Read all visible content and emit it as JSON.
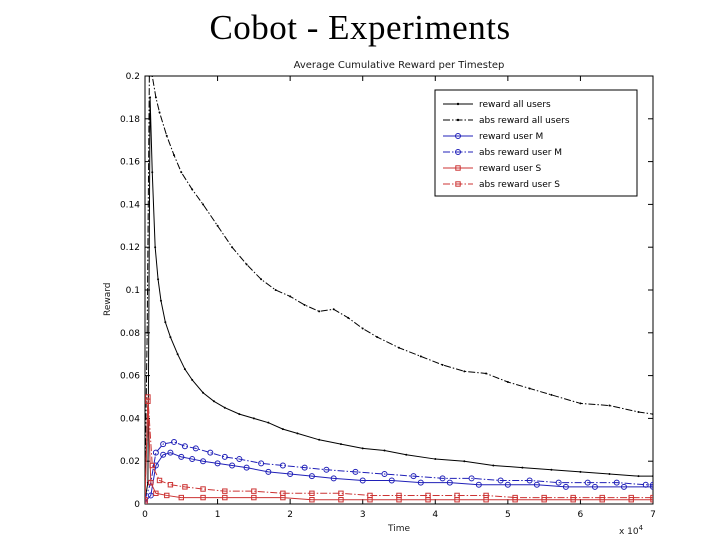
{
  "slide": {
    "title": "Cobot - Experiments"
  },
  "chart_data": {
    "type": "line",
    "title": "Average Cumulative Reward per Timestep",
    "xlabel": "Time",
    "ylabel": "Reward",
    "x_scale_base": "x 10",
    "x_scale_exp": "4",
    "xlim": [
      0,
      7
    ],
    "ylim": [
      0,
      0.2
    ],
    "xticks": [
      0,
      1,
      2,
      3,
      4,
      5,
      6,
      7
    ],
    "yticks": [
      0,
      0.02,
      0.04,
      0.06,
      0.08,
      0.1,
      0.12,
      0.14,
      0.16,
      0.18,
      0.2
    ],
    "ytick_labels": [
      "0",
      "0.02",
      "0.04",
      "0.06",
      "0.08",
      "0.1",
      "0.12",
      "0.14",
      "0.16",
      "0.18",
      "0.2"
    ],
    "legend_position": "top-right",
    "grid": false,
    "series": [
      {
        "name": "reward all users",
        "color": "#000000",
        "style": "solid",
        "marker": "dot",
        "x": [
          0,
          0.04,
          0.07,
          0.1,
          0.14,
          0.18,
          0.22,
          0.28,
          0.35,
          0.45,
          0.55,
          0.65,
          0.8,
          0.95,
          1.1,
          1.3,
          1.5,
          1.7,
          1.9,
          2.1,
          2.4,
          2.7,
          3.0,
          3.3,
          3.6,
          4.0,
          4.4,
          4.8,
          5.2,
          5.6,
          6.0,
          6.4,
          6.8,
          7.0
        ],
        "y": [
          0.002,
          0.01,
          0.19,
          0.155,
          0.12,
          0.105,
          0.095,
          0.085,
          0.078,
          0.07,
          0.063,
          0.058,
          0.052,
          0.048,
          0.045,
          0.042,
          0.04,
          0.038,
          0.035,
          0.033,
          0.03,
          0.028,
          0.026,
          0.025,
          0.023,
          0.021,
          0.02,
          0.018,
          0.017,
          0.016,
          0.015,
          0.014,
          0.013,
          0.013
        ]
      },
      {
        "name": "abs reward all users",
        "color": "#000000",
        "style": "dashdot",
        "marker": "dot",
        "x": [
          0,
          0.03,
          0.06,
          0.1,
          0.15,
          0.2,
          0.3,
          0.4,
          0.5,
          0.65,
          0.8,
          1.0,
          1.2,
          1.4,
          1.6,
          1.8,
          2.0,
          2.2,
          2.4,
          2.6,
          2.8,
          3.0,
          3.2,
          3.5,
          3.8,
          4.1,
          4.4,
          4.7,
          5.0,
          5.3,
          5.6,
          6.0,
          6.4,
          6.8,
          7.0
        ],
        "y": [
          0.01,
          0.08,
          0.2,
          0.2,
          0.19,
          0.183,
          0.172,
          0.163,
          0.155,
          0.147,
          0.14,
          0.13,
          0.12,
          0.112,
          0.105,
          0.1,
          0.097,
          0.093,
          0.09,
          0.091,
          0.087,
          0.082,
          0.078,
          0.073,
          0.069,
          0.065,
          0.062,
          0.061,
          0.057,
          0.054,
          0.051,
          0.047,
          0.046,
          0.043,
          0.042
        ]
      },
      {
        "name": "reward user M",
        "color": "#2020b8",
        "style": "solid",
        "marker": "circle",
        "x": [
          0,
          0.08,
          0.15,
          0.25,
          0.35,
          0.5,
          0.65,
          0.8,
          1.0,
          1.2,
          1.4,
          1.7,
          2.0,
          2.3,
          2.6,
          3.0,
          3.4,
          3.8,
          4.2,
          4.6,
          5.0,
          5.4,
          5.8,
          6.2,
          6.6,
          7.0
        ],
        "y": [
          0.001,
          0.004,
          0.018,
          0.023,
          0.024,
          0.022,
          0.021,
          0.02,
          0.019,
          0.018,
          0.017,
          0.015,
          0.014,
          0.013,
          0.012,
          0.011,
          0.011,
          0.01,
          0.01,
          0.009,
          0.009,
          0.009,
          0.008,
          0.008,
          0.008,
          0.008
        ]
      },
      {
        "name": "abs reward user M",
        "color": "#2020b8",
        "style": "dashdot",
        "marker": "circle",
        "x": [
          0,
          0.08,
          0.15,
          0.25,
          0.4,
          0.55,
          0.7,
          0.9,
          1.1,
          1.3,
          1.6,
          1.9,
          2.2,
          2.5,
          2.9,
          3.3,
          3.7,
          4.1,
          4.5,
          4.9,
          5.3,
          5.7,
          6.1,
          6.5,
          6.9,
          7.0
        ],
        "y": [
          0.002,
          0.01,
          0.024,
          0.028,
          0.029,
          0.027,
          0.026,
          0.024,
          0.022,
          0.021,
          0.019,
          0.018,
          0.017,
          0.016,
          0.015,
          0.014,
          0.013,
          0.012,
          0.012,
          0.011,
          0.011,
          0.01,
          0.01,
          0.01,
          0.009,
          0.009
        ]
      },
      {
        "name": "reward user S",
        "color": "#cc3333",
        "style": "solid",
        "marker": "square",
        "x": [
          0,
          0.04,
          0.08,
          0.15,
          0.3,
          0.5,
          0.8,
          1.1,
          1.5,
          1.9,
          2.3,
          2.7,
          3.1,
          3.5,
          3.9,
          4.3,
          4.7,
          5.1,
          5.5,
          5.9,
          6.3,
          6.7,
          7.0
        ],
        "y": [
          0.001,
          0.048,
          0.01,
          0.005,
          0.004,
          0.003,
          0.003,
          0.003,
          0.003,
          0.003,
          0.002,
          0.002,
          0.002,
          0.002,
          0.002,
          0.002,
          0.002,
          0.002,
          0.002,
          0.002,
          0.002,
          0.002,
          0.002
        ]
      },
      {
        "name": "abs reward user S",
        "color": "#cc3333",
        "style": "dashdot",
        "marker": "square",
        "x": [
          0,
          0.04,
          0.1,
          0.2,
          0.35,
          0.55,
          0.8,
          1.1,
          1.5,
          1.9,
          2.3,
          2.7,
          3.1,
          3.5,
          3.9,
          4.3,
          4.7,
          5.1,
          5.5,
          5.9,
          6.3,
          6.7,
          7.0
        ],
        "y": [
          0.002,
          0.05,
          0.018,
          0.011,
          0.009,
          0.008,
          0.007,
          0.006,
          0.006,
          0.005,
          0.005,
          0.005,
          0.004,
          0.004,
          0.004,
          0.004,
          0.004,
          0.003,
          0.003,
          0.003,
          0.003,
          0.003,
          0.003
        ]
      }
    ]
  }
}
